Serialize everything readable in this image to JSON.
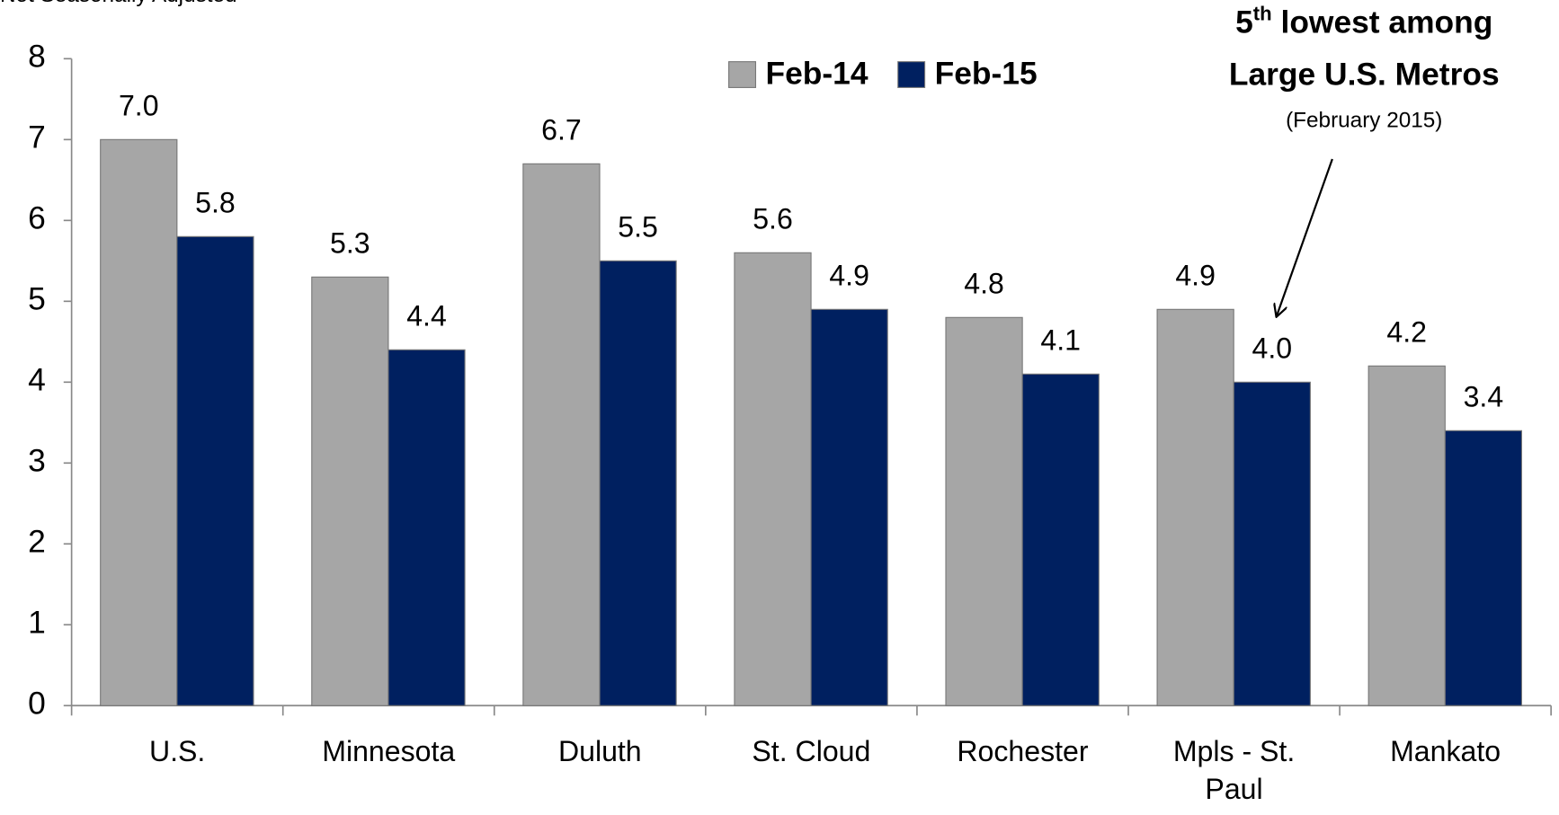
{
  "chart_data": {
    "type": "bar",
    "subtitle": "Not Seasonally Adjusted",
    "categories": [
      "U.S.",
      "Minnesota",
      "Duluth",
      "St. Cloud",
      "Rochester",
      "Mpls - St. Paul",
      "Mankato"
    ],
    "series": [
      {
        "name": "Feb-14",
        "color": "#a6a6a6",
        "values": [
          7.0,
          5.3,
          6.7,
          5.6,
          4.8,
          4.9,
          4.2
        ],
        "value_labels": [
          "7.0",
          "5.3",
          "6.7",
          "5.6",
          "4.8",
          "4.9",
          "4.2"
        ]
      },
      {
        "name": "Feb-15",
        "color": "#002060",
        "values": [
          5.8,
          4.4,
          5.5,
          4.9,
          4.1,
          4.0,
          3.4
        ],
        "value_labels": [
          "5.8",
          "4.4",
          "5.5",
          "4.9",
          "4.1",
          "4.0",
          "3.4"
        ]
      }
    ],
    "ylim": [
      0,
      8
    ],
    "yticks": [
      0,
      1,
      2,
      3,
      4,
      5,
      6,
      7,
      8
    ],
    "grid": false,
    "legend": "top",
    "annotation": {
      "number": "5",
      "suffix": "th",
      "rest": " lowest among",
      "line2": "Large U.S. Metros",
      "line3": "(February 2015)"
    }
  }
}
